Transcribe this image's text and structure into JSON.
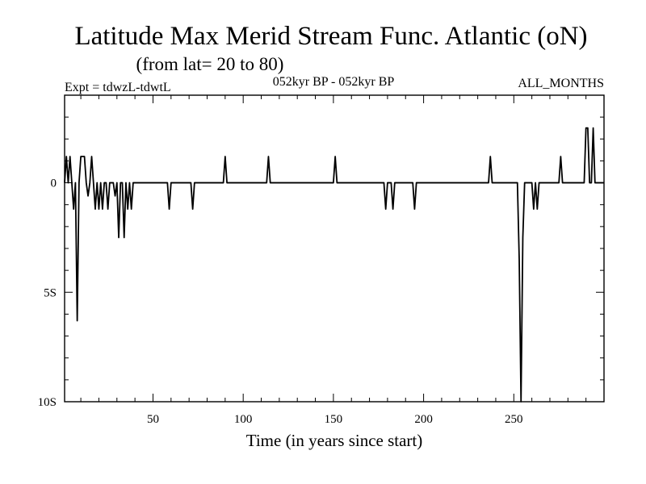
{
  "chart_data": {
    "type": "line",
    "title": "Latitude Max Merid Stream Func. Atlantic (oN)",
    "subtitle": "(from lat= 20 to 80)",
    "experiment_label": "Expt = tdwzL-tdwtL",
    "period_label": "052kyr BP - 052kyr BP",
    "season_label": "ALL_MONTHS",
    "xlabel": "Time (in years since start)",
    "ylabel": "",
    "xlim": [
      1,
      300
    ],
    "ylim": [
      -10,
      4
    ],
    "x_ticks": [
      50,
      100,
      150,
      200,
      250
    ],
    "x_tick_labels": [
      "50",
      "100",
      "150",
      "200",
      "250"
    ],
    "y_ticks": [
      0,
      -5,
      -10
    ],
    "y_tick_labels": [
      "0",
      "5S",
      "10S"
    ],
    "grid": false,
    "series": [
      {
        "x": [
          1,
          2,
          3,
          4,
          5,
          6,
          7,
          8,
          9,
          10,
          11,
          12,
          13,
          14,
          15,
          16,
          17,
          18,
          19,
          20,
          21,
          22,
          23,
          24,
          25,
          26,
          27,
          28,
          29,
          30,
          31,
          32,
          33,
          34,
          35,
          36,
          37,
          38,
          39,
          40,
          41,
          42,
          43,
          44,
          45,
          46,
          47,
          58,
          59,
          60,
          71,
          72,
          73,
          89,
          90,
          91,
          92,
          113,
          114,
          115,
          116,
          150,
          151,
          152,
          153,
          178,
          179,
          180,
          181,
          182,
          183,
          184,
          185,
          186,
          187,
          188,
          194,
          195,
          196,
          236,
          237,
          238,
          252,
          253,
          254,
          255,
          256,
          257,
          260,
          261,
          262,
          263,
          264,
          265,
          266,
          275,
          276,
          277,
          289,
          290,
          291,
          292,
          293,
          294,
          295,
          296,
          297,
          298,
          299,
          300
        ],
        "y": [
          0,
          1.2,
          0,
          1.2,
          0,
          -1.2,
          0,
          -6.3,
          0,
          1.2,
          1.2,
          1.2,
          0,
          -0.6,
          0,
          1.2,
          0,
          -1.2,
          0,
          -1.2,
          0,
          -1.2,
          0,
          0,
          -1.2,
          0,
          0,
          0,
          -0.6,
          0,
          -2.5,
          0,
          0,
          -2.5,
          0,
          -1.2,
          0,
          -1.2,
          0,
          0,
          0,
          0,
          0,
          0,
          0,
          0,
          0,
          0,
          -1.2,
          0,
          0,
          -1.2,
          0,
          0,
          1.2,
          0,
          0,
          0,
          1.2,
          0,
          0,
          0,
          1.2,
          0,
          0,
          0,
          -1.2,
          0,
          0,
          0,
          -1.2,
          0,
          0,
          0,
          0,
          0,
          0,
          -1.2,
          0,
          0,
          1.2,
          0,
          0,
          -3.5,
          -10,
          -2.5,
          0,
          0,
          0,
          -1.2,
          0,
          -1.2,
          0,
          0,
          0,
          0,
          1.2,
          0,
          0,
          2.5,
          2.5,
          0,
          0,
          2.5,
          0,
          0,
          0,
          0,
          0,
          0
        ]
      }
    ]
  }
}
